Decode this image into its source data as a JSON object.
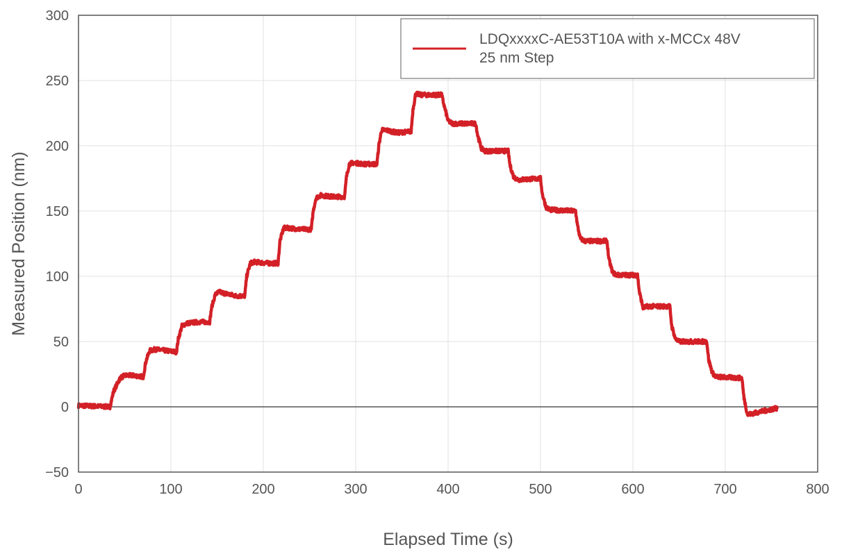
{
  "chart_data": {
    "type": "line",
    "xlabel": "Elapsed Time (s)",
    "ylabel": "Measured Position (nm)",
    "xlim": [
      0,
      800
    ],
    "ylim": [
      -50,
      300
    ],
    "xticks": [
      0,
      100,
      200,
      300,
      400,
      500,
      600,
      700,
      800
    ],
    "yticks": [
      -50,
      0,
      50,
      100,
      150,
      200,
      250,
      300
    ],
    "ytick_labels": [
      "−50",
      "0",
      "50",
      "100",
      "150",
      "200",
      "250",
      "300"
    ],
    "grid": true,
    "zero_line": true,
    "legend_position": "top-right",
    "series": [
      {
        "name": "LDQxxxxC-AE53T10A with x-MCCx 48V\n25 nm Step",
        "legend_lines": [
          "LDQxxxxC-AE53T10A with x-MCCx 48V",
          "25 nm Step"
        ],
        "color": "#d32027",
        "x": [
          0,
          34,
          38,
          45,
          50,
          60,
          70,
          73,
          77,
          83,
          95,
          106,
          108,
          112,
          117,
          130,
          142,
          144,
          148,
          152,
          170,
          180,
          182,
          186,
          190,
          205,
          216,
          218,
          222,
          228,
          240,
          252,
          254,
          257,
          262,
          275,
          288,
          290,
          293,
          297,
          310,
          323,
          325,
          328,
          333,
          345,
          360,
          362,
          365,
          370,
          393,
          396,
          400,
          405,
          430,
          432,
          436,
          440,
          465,
          467,
          471,
          476,
          500,
          502,
          506,
          510,
          538,
          540,
          543,
          548,
          572,
          574,
          578,
          582,
          605,
          607,
          611,
          616,
          640,
          642,
          646,
          650,
          680,
          682,
          686,
          690,
          718,
          720,
          724,
          730,
          756
        ],
        "y": [
          1,
          0,
          12,
          22,
          24,
          24,
          23,
          35,
          43,
          44,
          43,
          42,
          52,
          62,
          64,
          65,
          65,
          76,
          86,
          88,
          85,
          85,
          100,
          110,
          111,
          110,
          110,
          127,
          137,
          137,
          136,
          136,
          150,
          160,
          162,
          161,
          161,
          176,
          186,
          187,
          186,
          186,
          200,
          212,
          212,
          210,
          211,
          228,
          240,
          239,
          239,
          230,
          219,
          217,
          217,
          208,
          198,
          196,
          196,
          185,
          176,
          174,
          175,
          163,
          153,
          151,
          150,
          139,
          129,
          127,
          127,
          113,
          103,
          101,
          101,
          88,
          76,
          77,
          77,
          62,
          52,
          50,
          50,
          36,
          26,
          23,
          22,
          8,
          -6,
          -5,
          -1
        ]
      }
    ]
  }
}
